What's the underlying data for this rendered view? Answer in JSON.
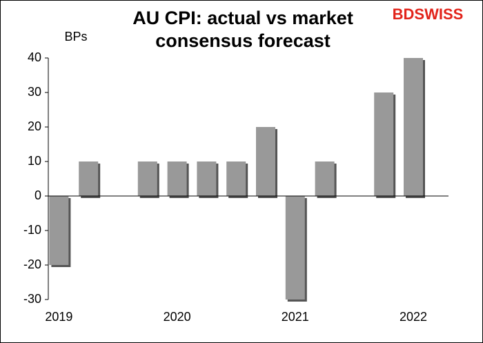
{
  "chart_data": {
    "type": "bar",
    "title": [
      "AU CPI: actual vs market",
      "consensus forecast"
    ],
    "y_label": "BPs",
    "logo": "BDSWISS",
    "categories": [
      "2019",
      null,
      null,
      null,
      "2020",
      null,
      null,
      null,
      "2021",
      null,
      null,
      null,
      "2022"
    ],
    "values": [
      -20,
      10,
      0,
      10,
      10,
      10,
      10,
      20,
      -30,
      10,
      0,
      30,
      40
    ],
    "color": "#999999",
    "ylim": [
      -30,
      40
    ],
    "yticks": [
      -30,
      -20,
      -10,
      0,
      10,
      20,
      30,
      40
    ],
    "grid": false
  }
}
